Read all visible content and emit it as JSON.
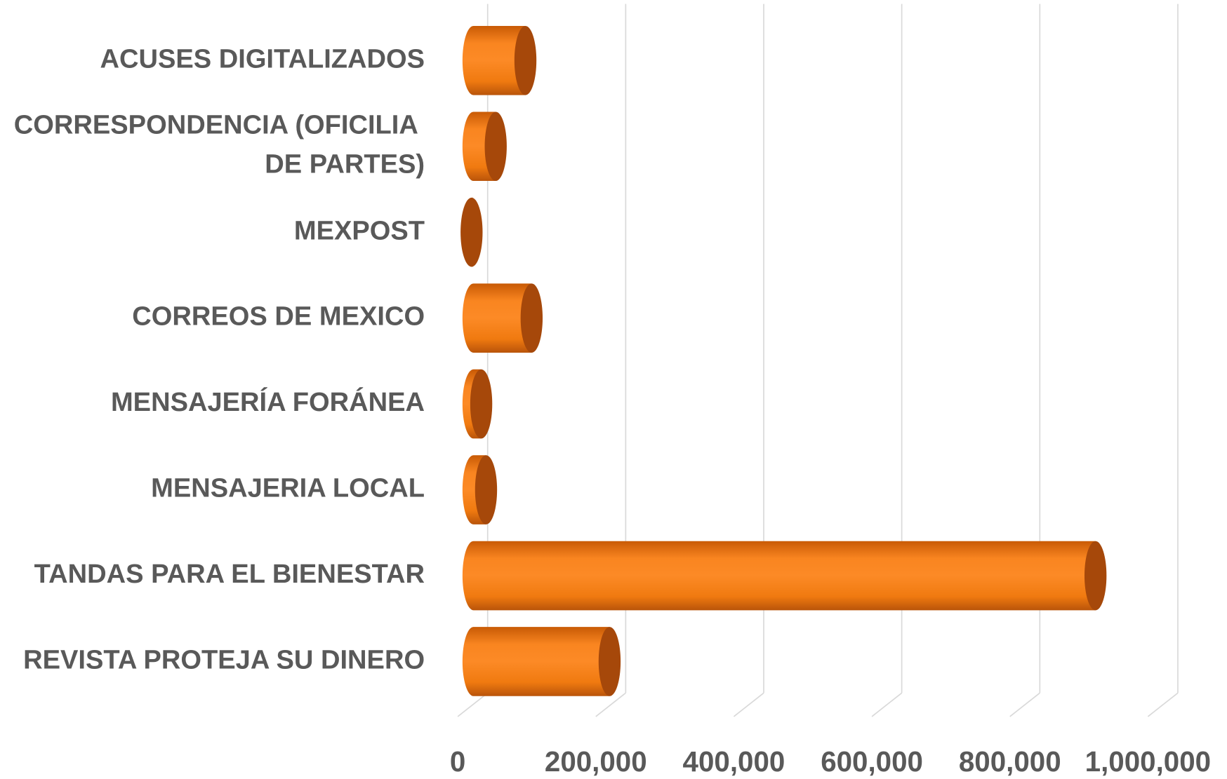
{
  "chart_data": {
    "type": "bar",
    "orientation": "horizontal",
    "style": "3d-cylinder",
    "categories": [
      "ACUSES DIGITALIZADOS",
      "CORRESPONDENCIA (OFICILIA DE PARTES)",
      "MEXPOST",
      "CORREOS DE MEXICO",
      "MENSAJERÍA FORÁNEA",
      "MENSAJERIA LOCAL",
      "TANDAS PARA EL BIENESTAR",
      "REVISTA PROTEJA SU DINERO"
    ],
    "values": [
      98000,
      55000,
      20000,
      107000,
      34000,
      41000,
      924000,
      220000
    ],
    "color": "#f97a12",
    "xlim": [
      0,
      1000000
    ],
    "xticks": [
      0,
      {
        "value": 200000,
        "label": "200,000"
      },
      {
        "value": 400000,
        "label": "400,000"
      },
      {
        "value": 600000,
        "label": "600,000"
      },
      {
        "value": 800000,
        "label": "800,000"
      },
      {
        "value": 1000000,
        "label": "1,000,000"
      }
    ],
    "grid": true
  }
}
